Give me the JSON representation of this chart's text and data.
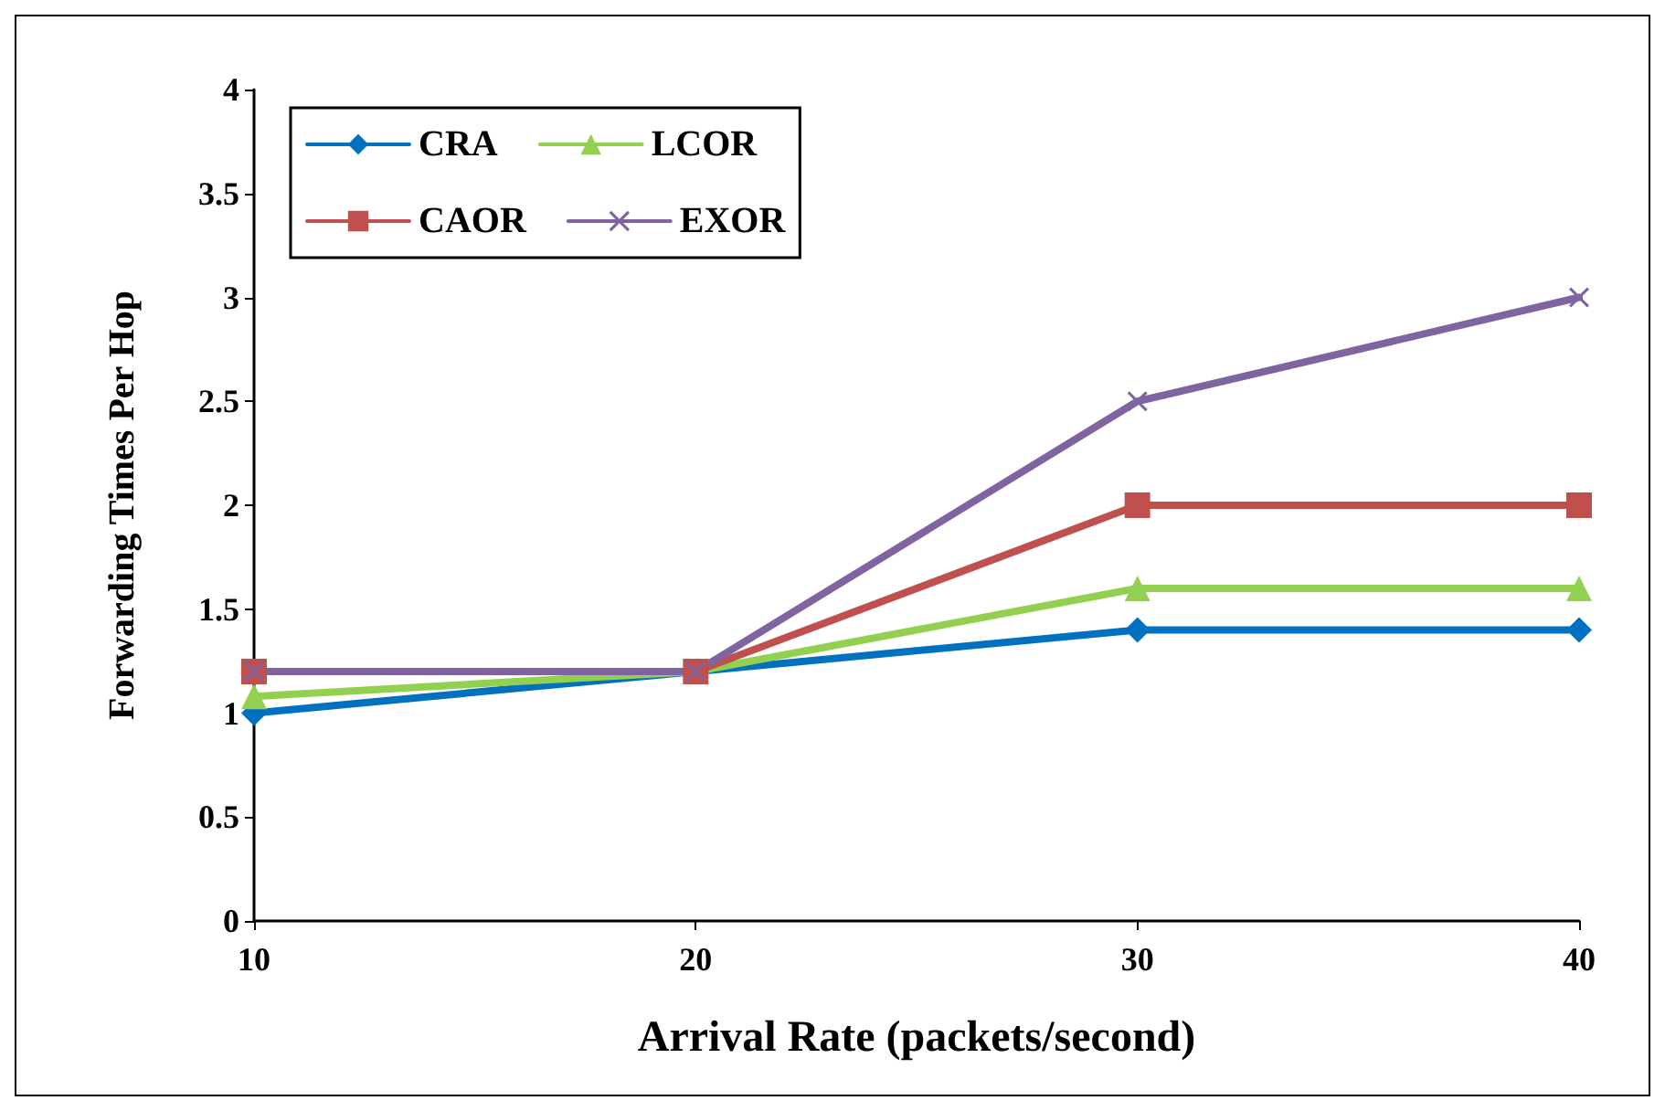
{
  "chart_data": {
    "type": "line",
    "xlabel": "Arrival Rate (packets/second)",
    "ylabel": "Forwarding Times Per Hop",
    "categories": [
      "10",
      "20",
      "30",
      "40"
    ],
    "ylim": [
      0,
      4
    ],
    "yticks": [
      0,
      0.5,
      1,
      1.5,
      2,
      2.5,
      3,
      3.5,
      4
    ],
    "grid": false,
    "legend": "top left",
    "line_style": "solid",
    "series": [
      {
        "name": "CRA",
        "color": "#0070c0",
        "marker": "diamond",
        "values": [
          1,
          1.2,
          1.4,
          1.4
        ]
      },
      {
        "name": "LCOR",
        "color": "#92d050",
        "marker": "triangle",
        "values": [
          1.08,
          1.2,
          1.6,
          1.6
        ]
      },
      {
        "name": "CAOR",
        "color": "#c0504d",
        "marker": "square",
        "values": [
          1.2,
          1.2,
          2,
          2
        ]
      },
      {
        "name": "EXOR",
        "color": "#8064a2",
        "marker": "cross",
        "values": [
          1.2,
          1.2,
          2.5,
          3
        ]
      }
    ]
  }
}
